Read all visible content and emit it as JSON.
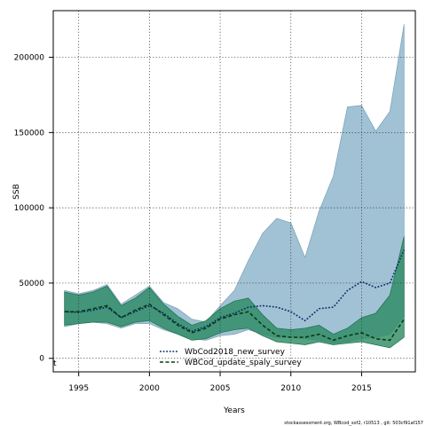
{
  "chart_data": {
    "type": "area",
    "xlabel": "Years",
    "ylabel": "SSB",
    "xlim": [
      1993.2,
      2018.8
    ],
    "ylim": [
      -9000,
      231000
    ],
    "xticks": [
      1995,
      2000,
      2005,
      2010,
      2015
    ],
    "yticks": [
      0,
      50000,
      100000,
      150000,
      200000
    ],
    "xtick_labels": [
      "1995",
      "2000",
      "2005",
      "2010",
      "2015"
    ],
    "ytick_labels": [
      "0",
      "50000",
      "100000",
      "150000",
      "200000"
    ],
    "grid": true,
    "legend_position": "bottom-center",
    "corner_label": "t",
    "footer": "stockassessment.org, WBcod_sof2, r10513 , git: 503cf91af157",
    "colors": {
      "band_blue": "#8fb7cc",
      "band_blue_edge": "#7aa0b5",
      "band_green": "#2a8a62",
      "band_green_edge": "#1f6e4c",
      "line_blue": "#0a2a6b",
      "line_green": "#0b3a10"
    },
    "x": [
      1994,
      1995,
      1996,
      1997,
      1998,
      1999,
      2000,
      2001,
      2002,
      2003,
      2004,
      2005,
      2006,
      2007,
      2008,
      2009,
      2010,
      2011,
      2012,
      2013,
      2014,
      2015,
      2016,
      2017,
      2018
    ],
    "series": [
      {
        "name": "WbCod2018_new_survey",
        "style": "dotted",
        "color": "line_blue",
        "band_color": "band_blue",
        "values": [
          31000,
          30500,
          32000,
          34000,
          27000,
          31000,
          35000,
          30000,
          23000,
          18000,
          21000,
          27000,
          30000,
          34000,
          35000,
          34000,
          31000,
          25000,
          33000,
          34000,
          45000,
          51000,
          47000,
          50000,
          72000
        ],
        "lower": [
          21000,
          23000,
          24000,
          23000,
          20000,
          23000,
          23000,
          19000,
          16000,
          13000,
          12000,
          15000,
          16000,
          19000,
          16000,
          14000,
          14000,
          13000,
          12000,
          10000,
          11000,
          13000,
          14000,
          16000,
          28000
        ],
        "upper": [
          45000,
          43000,
          45000,
          49000,
          36000,
          42000,
          48000,
          37000,
          33000,
          26000,
          24000,
          35000,
          45000,
          65000,
          83000,
          93000,
          90000,
          67000,
          98000,
          121000,
          167000,
          168000,
          151000,
          164000,
          222000
        ]
      },
      {
        "name": "WBCod_update_spaly_survey",
        "style": "dashed",
        "color": "line_green",
        "band_color": "band_green",
        "values": [
          31000,
          31000,
          33000,
          35000,
          27000,
          32000,
          36000,
          29000,
          22000,
          17000,
          20000,
          26000,
          29000,
          31000,
          22000,
          15000,
          14000,
          14000,
          16000,
          12000,
          15000,
          17000,
          13000,
          12000,
          26000
        ],
        "lower": [
          22000,
          23000,
          24000,
          24000,
          21000,
          24000,
          25000,
          20000,
          16000,
          12000,
          13000,
          17000,
          19000,
          20000,
          15000,
          11000,
          10000,
          9000,
          11000,
          9000,
          10000,
          11000,
          9000,
          7000,
          14000
        ],
        "upper": [
          44000,
          42000,
          44000,
          48000,
          35000,
          40000,
          47000,
          36000,
          28000,
          22000,
          25000,
          33000,
          38000,
          40000,
          29000,
          20000,
          19000,
          20000,
          22000,
          16000,
          20000,
          27000,
          30000,
          42000,
          81000
        ]
      }
    ]
  }
}
